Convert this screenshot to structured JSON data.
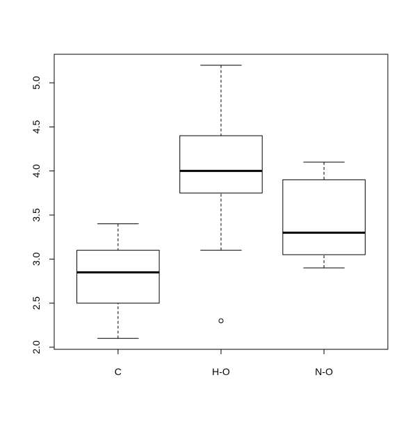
{
  "chart_data": {
    "type": "box",
    "categories": [
      "C",
      "H-O",
      "N-O"
    ],
    "boxes": [
      {
        "low": 2.1,
        "q1": 2.5,
        "median": 2.85,
        "q3": 3.1,
        "high": 3.4,
        "outliers": []
      },
      {
        "low": 3.1,
        "q1": 3.75,
        "median": 4.0,
        "q3": 4.4,
        "high": 5.2,
        "outliers": [
          2.3
        ]
      },
      {
        "low": 2.9,
        "q1": 3.05,
        "median": 3.3,
        "q3": 3.9,
        "high": 4.1,
        "outliers": []
      }
    ],
    "xlim": [
      0.38,
      3.62
    ],
    "ylim": [
      1.976,
      5.324
    ],
    "yticks": [
      {
        "value": 2,
        "label": "2.0"
      },
      2.5,
      {
        "value": 3,
        "label": "3.0"
      },
      3.5,
      {
        "value": 4,
        "label": "4.0"
      },
      4.5,
      {
        "value": 5,
        "label": "5.0"
      }
    ],
    "color": "#000000"
  }
}
